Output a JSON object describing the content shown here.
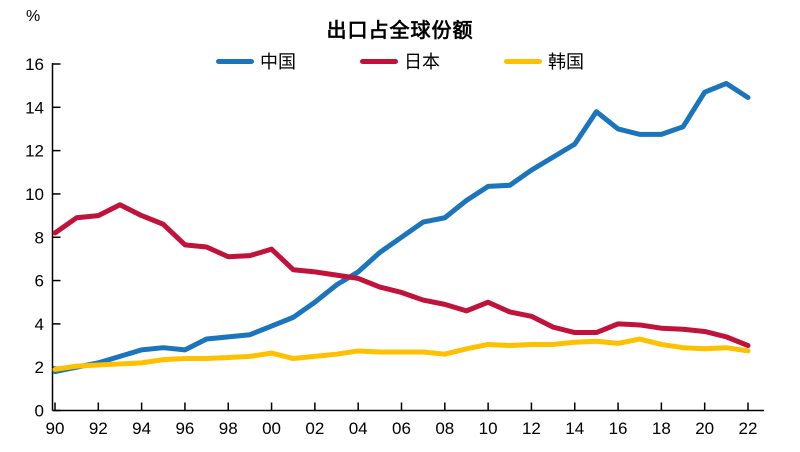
{
  "page": {
    "background": "#ffffff"
  },
  "chart_data": {
    "type": "line",
    "title": "出口占全球份额",
    "unit_label": "%",
    "x": [
      1990,
      1991,
      1992,
      1993,
      1994,
      1995,
      1996,
      1997,
      1998,
      1999,
      2000,
      2001,
      2002,
      2003,
      2004,
      2005,
      2006,
      2007,
      2008,
      2009,
      2010,
      2011,
      2012,
      2013,
      2014,
      2015,
      2016,
      2017,
      2018,
      2019,
      2020,
      2021,
      2022
    ],
    "x_tick_labels": [
      "90",
      "92",
      "94",
      "96",
      "98",
      "00",
      "02",
      "04",
      "06",
      "08",
      "10",
      "12",
      "14",
      "16",
      "18",
      "20",
      "22"
    ],
    "ylim": [
      0,
      16
    ],
    "y_ticks": [
      0,
      2,
      4,
      6,
      8,
      10,
      12,
      14,
      16
    ],
    "grid": false,
    "legend_position": "top",
    "axis_color": "#000000",
    "series": [
      {
        "name": "中国",
        "color": "#1B75BC",
        "values": [
          1.8,
          2.0,
          2.2,
          2.5,
          2.8,
          2.9,
          2.8,
          3.3,
          3.4,
          3.5,
          3.9,
          4.3,
          5.0,
          5.8,
          6.4,
          7.3,
          8.0,
          8.7,
          8.9,
          9.7,
          10.35,
          10.4,
          11.1,
          11.7,
          12.3,
          13.8,
          13.0,
          12.75,
          12.75,
          13.1,
          14.7,
          15.1,
          14.45
        ]
      },
      {
        "name": "日本",
        "color": "#C0123A",
        "values": [
          8.2,
          8.9,
          9.0,
          9.5,
          9.0,
          8.6,
          7.65,
          7.55,
          7.1,
          7.15,
          7.45,
          6.5,
          6.4,
          6.25,
          6.1,
          5.7,
          5.45,
          5.1,
          4.9,
          4.6,
          5.0,
          4.55,
          4.35,
          3.85,
          3.6,
          3.6,
          4.0,
          3.95,
          3.8,
          3.75,
          3.65,
          3.4,
          3.0
        ]
      },
      {
        "name": "韩国",
        "color": "#FFC000",
        "values": [
          1.9,
          2.05,
          2.1,
          2.15,
          2.2,
          2.35,
          2.4,
          2.4,
          2.45,
          2.5,
          2.65,
          2.4,
          2.5,
          2.6,
          2.75,
          2.7,
          2.7,
          2.7,
          2.6,
          2.85,
          3.05,
          3.0,
          3.05,
          3.05,
          3.15,
          3.2,
          3.1,
          3.3,
          3.05,
          2.9,
          2.85,
          2.9,
          2.75
        ]
      }
    ]
  }
}
